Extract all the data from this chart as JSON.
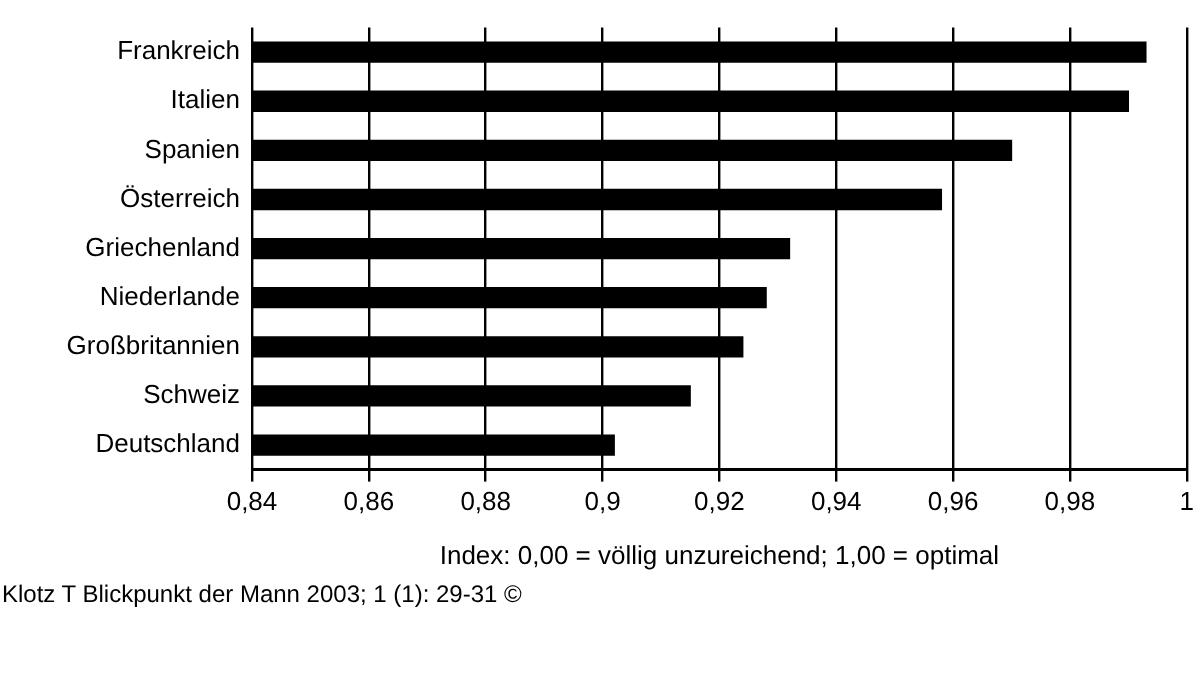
{
  "chart_data": {
    "type": "bar",
    "orientation": "horizontal",
    "xlabel": "Index: 0,00 = völlig unzureichend; 1,00 = optimal",
    "categories": [
      "Frankreich",
      "Italien",
      "Spanien",
      "Österreich",
      "Griechenland",
      "Niederlande",
      "Großbritannien",
      "Schweiz",
      "Deutschland"
    ],
    "values": [
      0.993,
      0.99,
      0.97,
      0.958,
      0.932,
      0.928,
      0.924,
      0.915,
      0.902
    ],
    "color": "#000000",
    "xlim": [
      0.84,
      1
    ],
    "xticks": [
      {
        "value": 0.84,
        "label": "0,84"
      },
      {
        "value": 0.86,
        "label": "0,86"
      },
      {
        "value": 0.88,
        "label": "0,88"
      },
      {
        "value": 0.9,
        "label": "0,9"
      },
      {
        "value": 0.92,
        "label": "0,92"
      },
      {
        "value": 0.94,
        "label": "0,94"
      },
      {
        "value": 0.96,
        "label": "0,96"
      },
      {
        "value": 0.98,
        "label": "0,98"
      },
      {
        "value": 1,
        "label": "1"
      }
    ],
    "grid": "x",
    "legend": false,
    "annotations": [
      "Klotz T Blickpunkt der Mann 2003; 1 (1): 29-31 ©"
    ]
  }
}
